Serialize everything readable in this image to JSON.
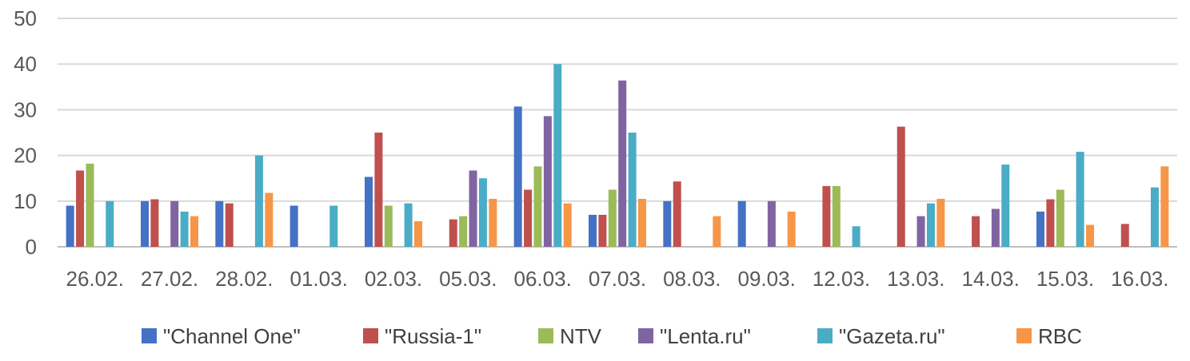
{
  "chart_data": {
    "type": "bar",
    "title": "",
    "xlabel": "",
    "ylabel": "",
    "ylim": [
      0,
      50
    ],
    "yticks": [
      0,
      10,
      20,
      30,
      40,
      50
    ],
    "grid": true,
    "legend_position": "bottom",
    "categories": [
      "26.02.",
      "27.02.",
      "28.02.",
      "01.03.",
      "02.03.",
      "05.03.",
      "06.03.",
      "07.03.",
      "08.03.",
      "09.03.",
      "12.03.",
      "13.03.",
      "14.03.",
      "15.03.",
      "16.03."
    ],
    "series": [
      {
        "name": "\"Channel One\"",
        "color": "#4472C4",
        "values": [
          9,
          10,
          10,
          9,
          15.3,
          0,
          30.7,
          7,
          10,
          10,
          0,
          0,
          0,
          7.7,
          0
        ]
      },
      {
        "name": "\"Russia-1\"",
        "color": "#C0504D",
        "values": [
          16.7,
          10.4,
          9.5,
          0,
          25,
          6,
          12.5,
          7,
          14.3,
          0,
          13.3,
          26.3,
          6.7,
          10.4,
          5
        ]
      },
      {
        "name": "NTV",
        "color": "#9BBB59",
        "values": [
          18.2,
          0,
          0,
          0,
          9,
          6.7,
          17.6,
          12.5,
          0,
          0,
          13.3,
          0,
          0,
          12.5,
          0
        ]
      },
      {
        "name": "\"Lenta.ru\"",
        "color": "#8064A2",
        "values": [
          0,
          10,
          0,
          0,
          0,
          16.7,
          28.6,
          36.4,
          0,
          10,
          0,
          6.7,
          8.3,
          0,
          0
        ]
      },
      {
        "name": "\"Gazeta.ru\"",
        "color": "#4BACC6",
        "values": [
          10,
          7.7,
          20,
          9,
          9.5,
          15,
          40,
          25,
          0,
          0,
          4.5,
          9.5,
          18,
          20.8,
          13
        ]
      },
      {
        "name": "RBC",
        "color": "#F79646",
        "values": [
          0,
          6.7,
          11.8,
          0,
          5.6,
          10.5,
          9.5,
          10.5,
          6.7,
          7.7,
          0,
          10.5,
          0,
          4.8,
          17.6
        ]
      }
    ]
  }
}
